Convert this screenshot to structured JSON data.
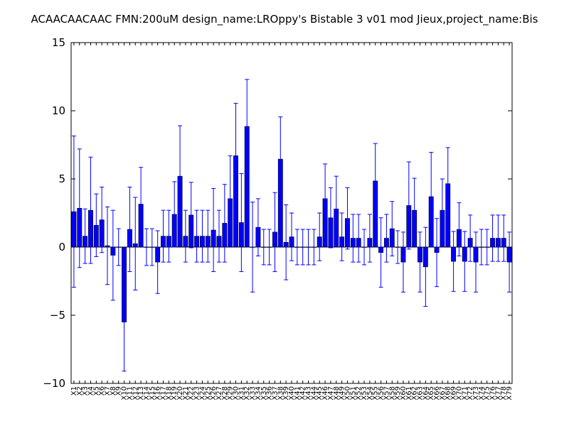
{
  "chart_data": {
    "type": "bar",
    "title": "ACAACAACAAC  FMN:200uM  design_name:LROppy's Bistable 3 v01 mod Jieux,project_name:Bis",
    "xlabel": "",
    "ylabel": "",
    "ylim": [
      -10,
      15
    ],
    "yticks": [
      -10,
      -5,
      0,
      5,
      10,
      15
    ],
    "grid": false,
    "bar_color": "#0000ff",
    "error_color": "#0000ff",
    "categories": [
      "X1",
      "X2",
      "X3",
      "X4",
      "X5",
      "X6",
      "X7",
      "X8",
      "X9",
      "X10",
      "X11",
      "X12",
      "X13",
      "X14",
      "X15",
      "X16",
      "X17",
      "X18",
      "X19",
      "X20",
      "X21",
      "X22",
      "X23",
      "X24",
      "X25",
      "X26",
      "X27",
      "X28",
      "X29",
      "X30",
      "X31",
      "X32",
      "X33",
      "X34",
      "X35",
      "X36",
      "X37",
      "X38",
      "X39",
      "X40",
      "X41",
      "X42",
      "X43",
      "X44",
      "X45",
      "X46",
      "X47",
      "X48",
      "X49",
      "X50",
      "X51",
      "X52",
      "X53",
      "X54",
      "X55",
      "X56",
      "X57",
      "X58",
      "X59",
      "X60",
      "X61",
      "X62",
      "X63",
      "X64",
      "X65",
      "X66",
      "X67",
      "X68",
      "X69",
      "X70",
      "X71",
      "X72",
      "X73",
      "X74",
      "X75",
      "X76",
      "X77",
      "X78",
      "X79"
    ],
    "values": [
      2.6,
      2.85,
      0.8,
      2.7,
      1.6,
      2.0,
      0.1,
      -0.6,
      0,
      -5.5,
      1.3,
      0.25,
      3.15,
      0,
      0,
      -1.1,
      0.8,
      0.8,
      2.4,
      5.2,
      0.8,
      2.35,
      0.8,
      0.8,
      0.8,
      1.25,
      0.8,
      1.75,
      3.55,
      6.7,
      1.8,
      8.85,
      0,
      1.45,
      0,
      0,
      1.1,
      6.45,
      0.35,
      0.75,
      0,
      0,
      0,
      0,
      0.75,
      3.55,
      2.15,
      2.8,
      0.75,
      2.1,
      0.65,
      0.65,
      0,
      0.65,
      4.85,
      -0.4,
      0.65,
      1.35,
      0,
      -1.1,
      3.05,
      2.7,
      -1.1,
      -1.45,
      3.7,
      -0.4,
      2.7,
      4.65,
      -1.05,
      1.3,
      -1.05,
      0.65,
      -1.1,
      0,
      0,
      0.65,
      0.65,
      0.65,
      -1.1
    ],
    "errors": [
      5.55,
      4.35,
      2.0,
      3.9,
      2.3,
      2.4,
      2.85,
      3.3,
      1.35,
      3.6,
      3.1,
      3.4,
      2.7,
      1.35,
      1.35,
      2.3,
      1.9,
      1.9,
      2.4,
      3.7,
      1.9,
      2.4,
      1.9,
      1.9,
      1.9,
      3.05,
      1.9,
      2.85,
      3.15,
      3.85,
      3.6,
      3.45,
      3.3,
      2.1,
      1.3,
      1.3,
      2.9,
      3.1,
      2.75,
      1.75,
      1.3,
      1.3,
      1.3,
      1.3,
      1.75,
      2.55,
      2.2,
      2.4,
      1.75,
      2.25,
      1.75,
      1.75,
      1.3,
      1.75,
      2.75,
      2.55,
      1.75,
      2.0,
      1.2,
      2.2,
      3.2,
      2.35,
      2.2,
      2.9,
      3.25,
      2.5,
      2.3,
      2.65,
      2.2,
      1.95,
      2.2,
      1.7,
      2.2,
      1.3,
      1.3,
      1.7,
      1.7,
      1.7,
      2.2
    ]
  }
}
